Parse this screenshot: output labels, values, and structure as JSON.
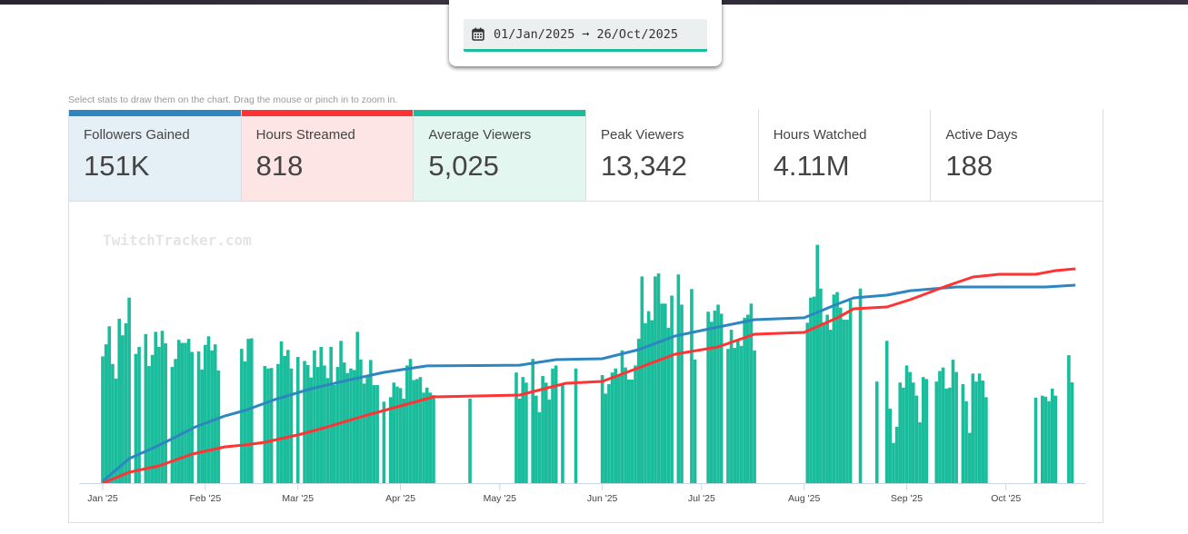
{
  "date_range": {
    "start": "01/Jan/2025",
    "arrow": "➞",
    "end": "26/Oct/2025",
    "icon": "calendar-icon"
  },
  "hint": "Select stats to draw them on the chart. Drag the mouse or pinch in to zoom in.",
  "stats": [
    {
      "label": "Followers Gained",
      "value": "151K",
      "selected": true,
      "color": "#2e86c1",
      "bg": "#e5eff6"
    },
    {
      "label": "Hours Streamed",
      "value": "818",
      "selected": true,
      "color": "#ff3333",
      "bg": "#fde5e5"
    },
    {
      "label": "Average Viewers",
      "value": "5,025",
      "selected": true,
      "color": "#1abc9c",
      "bg": "#e3f6f0"
    },
    {
      "label": "Peak Viewers",
      "value": "13,342",
      "selected": false,
      "color": "",
      "bg": "#ffffff"
    },
    {
      "label": "Hours Watched",
      "value": "4.11M",
      "selected": false,
      "color": "",
      "bg": "#ffffff"
    },
    {
      "label": "Active Days",
      "value": "188",
      "selected": false,
      "color": "",
      "bg": "#ffffff"
    }
  ],
  "chart_data": {
    "type": "bar+line",
    "watermark": "TwitchTracker.com",
    "x_unit": "day of 2025 (0 = Jan 1)",
    "x_ticks": [
      {
        "label": "Jan '25",
        "day": 0
      },
      {
        "label": "Feb '25",
        "day": 31
      },
      {
        "label": "Mar '25",
        "day": 59
      },
      {
        "label": "Apr '25",
        "day": 90
      },
      {
        "label": "May '25",
        "day": 120
      },
      {
        "label": "Jun '25",
        "day": 151
      },
      {
        "label": "Jul '25",
        "day": 181
      },
      {
        "label": "Aug '25",
        "day": 212
      },
      {
        "label": "Sep '25",
        "day": 243
      },
      {
        "label": "Oct '25",
        "day": 273
      }
    ],
    "xlim": [
      0,
      298
    ],
    "bars": {
      "name": "Average Viewers",
      "color": "#1abc9c",
      "ylim": [
        0,
        9500
      ],
      "points": [
        [
          0,
          5040
        ],
        [
          1,
          5520
        ],
        [
          2,
          6240
        ],
        [
          3,
          4740
        ],
        [
          4,
          4160
        ],
        [
          5,
          6540
        ],
        [
          6,
          5880
        ],
        [
          7,
          6360
        ],
        [
          8,
          7380
        ],
        [
          10,
          5140
        ],
        [
          11,
          5420
        ],
        [
          13,
          5930
        ],
        [
          14,
          4660
        ],
        [
          15,
          5100
        ],
        [
          16,
          6020
        ],
        [
          17,
          5420
        ],
        [
          18,
          6060
        ],
        [
          19,
          5560
        ],
        [
          21,
          4620
        ],
        [
          22,
          4940
        ],
        [
          23,
          5700
        ],
        [
          24,
          5580
        ],
        [
          25,
          5580
        ],
        [
          26,
          5740
        ],
        [
          27,
          5220
        ],
        [
          29,
          5240
        ],
        [
          30,
          4520
        ],
        [
          31,
          5500
        ],
        [
          32,
          5840
        ],
        [
          33,
          5280
        ],
        [
          34,
          5520
        ],
        [
          35,
          4480
        ],
        [
          42,
          5340
        ],
        [
          43,
          4840
        ],
        [
          44,
          5740
        ],
        [
          45,
          5760
        ],
        [
          49,
          4660
        ],
        [
          50,
          4560
        ],
        [
          51,
          4580
        ],
        [
          53,
          4740
        ],
        [
          54,
          5640
        ],
        [
          55,
          5060
        ],
        [
          56,
          5300
        ],
        [
          57,
          4560
        ],
        [
          59,
          5020
        ],
        [
          61,
          4860
        ],
        [
          62,
          4700
        ],
        [
          63,
          4200
        ],
        [
          64,
          5280
        ],
        [
          65,
          4620
        ],
        [
          66,
          5420
        ],
        [
          67,
          4680
        ],
        [
          68,
          4180
        ],
        [
          69,
          5420
        ],
        [
          70,
          3900
        ],
        [
          71,
          4620
        ],
        [
          72,
          5660
        ],
        [
          73,
          4800
        ],
        [
          74,
          4380
        ],
        [
          75,
          4560
        ],
        [
          76,
          4500
        ],
        [
          77,
          6020
        ],
        [
          78,
          4920
        ],
        [
          79,
          3960
        ],
        [
          80,
          4240
        ],
        [
          81,
          4900
        ],
        [
          82,
          3900
        ],
        [
          83,
          3900
        ],
        [
          85,
          3240
        ],
        [
          87,
          3420
        ],
        [
          88,
          4000
        ],
        [
          89,
          3840
        ],
        [
          90,
          3780
        ],
        [
          91,
          3360
        ],
        [
          92,
          4680
        ],
        [
          93,
          4940
        ],
        [
          94,
          4100
        ],
        [
          95,
          4140
        ],
        [
          96,
          4220
        ],
        [
          97,
          3600
        ],
        [
          98,
          3800
        ],
        [
          99,
          3600
        ],
        [
          100,
          3500
        ],
        [
          111,
          3360
        ],
        [
          125,
          4400
        ],
        [
          126,
          3360
        ],
        [
          127,
          4220
        ],
        [
          128,
          4000
        ],
        [
          130,
          4940
        ],
        [
          131,
          3480
        ],
        [
          132,
          2820
        ],
        [
          133,
          4260
        ],
        [
          134,
          4000
        ],
        [
          135,
          3320
        ],
        [
          136,
          4560
        ],
        [
          137,
          4680
        ],
        [
          139,
          3900
        ],
        [
          143,
          4560
        ],
        [
          151,
          4300
        ],
        [
          152,
          3560
        ],
        [
          153,
          3940
        ],
        [
          154,
          4400
        ],
        [
          155,
          4560
        ],
        [
          156,
          4320
        ],
        [
          157,
          5280
        ],
        [
          158,
          4600
        ],
        [
          159,
          4120
        ],
        [
          160,
          4120
        ],
        [
          161,
          4680
        ],
        [
          162,
          5740
        ],
        [
          163,
          8220
        ],
        [
          164,
          6360
        ],
        [
          165,
          6840
        ],
        [
          166,
          6480
        ],
        [
          167,
          8220
        ],
        [
          168,
          8340
        ],
        [
          169,
          7140
        ],
        [
          170,
          7140
        ],
        [
          171,
          6180
        ],
        [
          172,
          7460
        ],
        [
          174,
          8300
        ],
        [
          175,
          7100
        ],
        [
          178,
          7720
        ],
        [
          179,
          4920
        ],
        [
          183,
          6820
        ],
        [
          184,
          6420
        ],
        [
          185,
          6860
        ],
        [
          186,
          7100
        ],
        [
          187,
          6740
        ],
        [
          189,
          5340
        ],
        [
          190,
          6100
        ],
        [
          191,
          5380
        ],
        [
          192,
          5700
        ],
        [
          193,
          5460
        ],
        [
          194,
          6580
        ],
        [
          195,
          6700
        ],
        [
          196,
          7140
        ],
        [
          197,
          5280
        ],
        [
          213,
          6380
        ],
        [
          214,
          7380
        ],
        [
          215,
          7420
        ],
        [
          216,
          9480
        ],
        [
          217,
          7740
        ],
        [
          218,
          6400
        ],
        [
          219,
          6700
        ],
        [
          220,
          6100
        ],
        [
          221,
          7500
        ],
        [
          222,
          7600
        ],
        [
          223,
          6980
        ],
        [
          224,
          6500
        ],
        [
          225,
          6500
        ],
        [
          226,
          7260
        ],
        [
          229,
          7740
        ],
        [
          234,
          4040
        ],
        [
          237,
          5660
        ],
        [
          238,
          2960
        ],
        [
          239,
          1600
        ],
        [
          240,
          2240
        ],
        [
          241,
          4000
        ],
        [
          242,
          3800
        ],
        [
          243,
          4680
        ],
        [
          244,
          4420
        ],
        [
          245,
          4000
        ],
        [
          246,
          3480
        ],
        [
          247,
          2420
        ],
        [
          248,
          4220
        ],
        [
          249,
          4140
        ],
        [
          252,
          4040
        ],
        [
          253,
          4460
        ],
        [
          254,
          4600
        ],
        [
          255,
          3760
        ],
        [
          256,
          3800
        ],
        [
          257,
          4910
        ],
        [
          258,
          4420
        ],
        [
          260,
          3940
        ],
        [
          261,
          3260
        ],
        [
          262,
          2000
        ],
        [
          263,
          4360
        ],
        [
          264,
          4040
        ],
        [
          265,
          4360
        ],
        [
          266,
          4080
        ],
        [
          267,
          3420
        ],
        [
          282,
          3400
        ],
        [
          284,
          3480
        ],
        [
          285,
          3440
        ],
        [
          286,
          3260
        ],
        [
          287,
          3760
        ],
        [
          288,
          3480
        ],
        [
          292,
          5090
        ],
        [
          293,
          4010
        ]
      ]
    },
    "lines": [
      {
        "name": "Followers Gained (cumulative)",
        "color": "#2e86c1",
        "ylim": [
          0,
          151000
        ],
        "max": 151000,
        "points": [
          [
            0,
            1400
          ],
          [
            8,
            18700
          ],
          [
            16,
            27700
          ],
          [
            21,
            33900
          ],
          [
            28,
            42900
          ],
          [
            37,
            51300
          ],
          [
            43,
            55400
          ],
          [
            52,
            63700
          ],
          [
            63,
            72000
          ],
          [
            75,
            79000
          ],
          [
            85,
            84500
          ],
          [
            98,
            89400
          ],
          [
            126,
            90000
          ],
          [
            137,
            94200
          ],
          [
            151,
            94900
          ],
          [
            162,
            101800
          ],
          [
            173,
            112200
          ],
          [
            186,
            119100
          ],
          [
            197,
            124700
          ],
          [
            212,
            126100
          ],
          [
            222,
            136500
          ],
          [
            227,
            141300
          ],
          [
            237,
            143400
          ],
          [
            244,
            146800
          ],
          [
            258,
            149600
          ],
          [
            285,
            149600
          ],
          [
            294,
            151000
          ]
        ]
      },
      {
        "name": "Hours Streamed (cumulative)",
        "color": "#ff3333",
        "ylim": [
          0,
          818
        ],
        "max": 818,
        "points": [
          [
            0,
            0
          ],
          [
            8,
            41.6
          ],
          [
            17,
            65.9
          ],
          [
            27,
            110.9
          ],
          [
            37,
            138.6
          ],
          [
            43,
            145.6
          ],
          [
            49,
            156
          ],
          [
            60,
            187.2
          ],
          [
            68,
            214.9
          ],
          [
            79,
            256.5
          ],
          [
            87,
            284.2
          ],
          [
            100,
            329.3
          ],
          [
            126,
            336.2
          ],
          [
            140,
            381.3
          ],
          [
            151,
            388.2
          ],
          [
            162,
            440.2
          ],
          [
            173,
            492.2
          ],
          [
            186,
            519.9
          ],
          [
            197,
            568.4
          ],
          [
            212,
            575.4
          ],
          [
            222,
            630.8
          ],
          [
            227,
            665.5
          ],
          [
            237,
            672.4
          ],
          [
            244,
            700.2
          ],
          [
            255,
            752.2
          ],
          [
            263,
            786.8
          ],
          [
            271,
            797.2
          ],
          [
            282,
            797.2
          ],
          [
            288,
            811.1
          ],
          [
            294,
            818
          ]
        ]
      }
    ]
  }
}
